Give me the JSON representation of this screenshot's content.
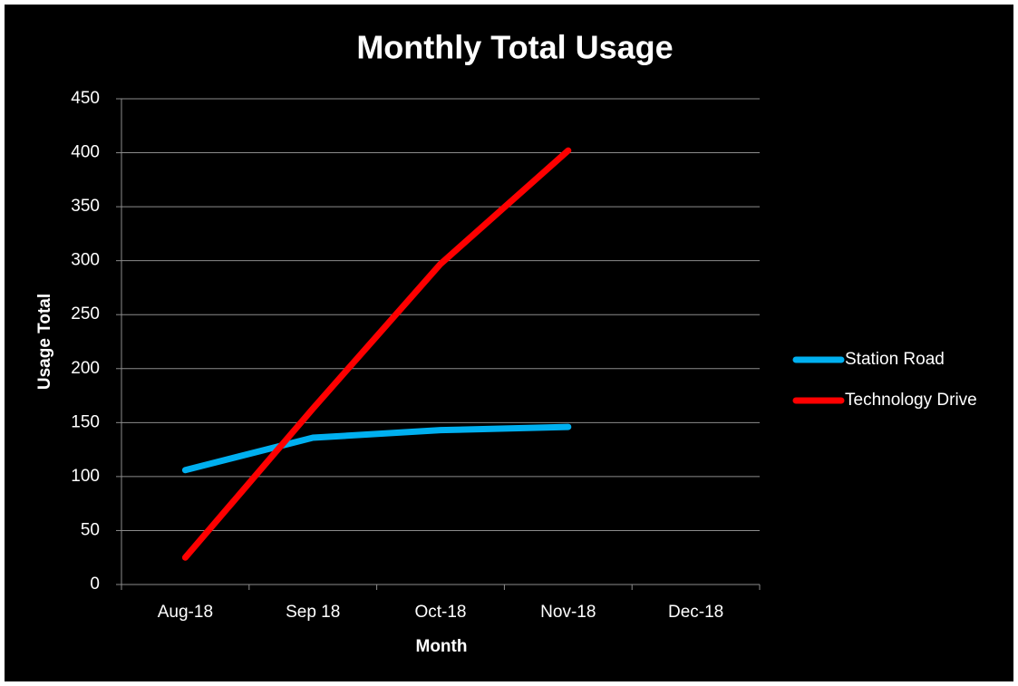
{
  "chart_data": {
    "type": "line",
    "title": "Monthly Total Usage",
    "x_label": "Month",
    "y_label": "Usage Total",
    "categories": [
      "Aug-18",
      "Sep 18",
      "Oct-18",
      "Nov-18",
      "Dec-18"
    ],
    "series": [
      {
        "name": "Station Road",
        "color": "#00b0f0",
        "values": [
          106,
          136,
          143,
          146,
          null
        ]
      },
      {
        "name": "Technology Drive",
        "color": "#ff0000",
        "values": [
          25,
          163,
          297,
          402,
          null
        ]
      }
    ],
    "ylim": [
      0,
      450
    ],
    "yticks": [
      0,
      50,
      100,
      150,
      200,
      250,
      300,
      350,
      400,
      450
    ],
    "grid": true,
    "legend": "right"
  }
}
